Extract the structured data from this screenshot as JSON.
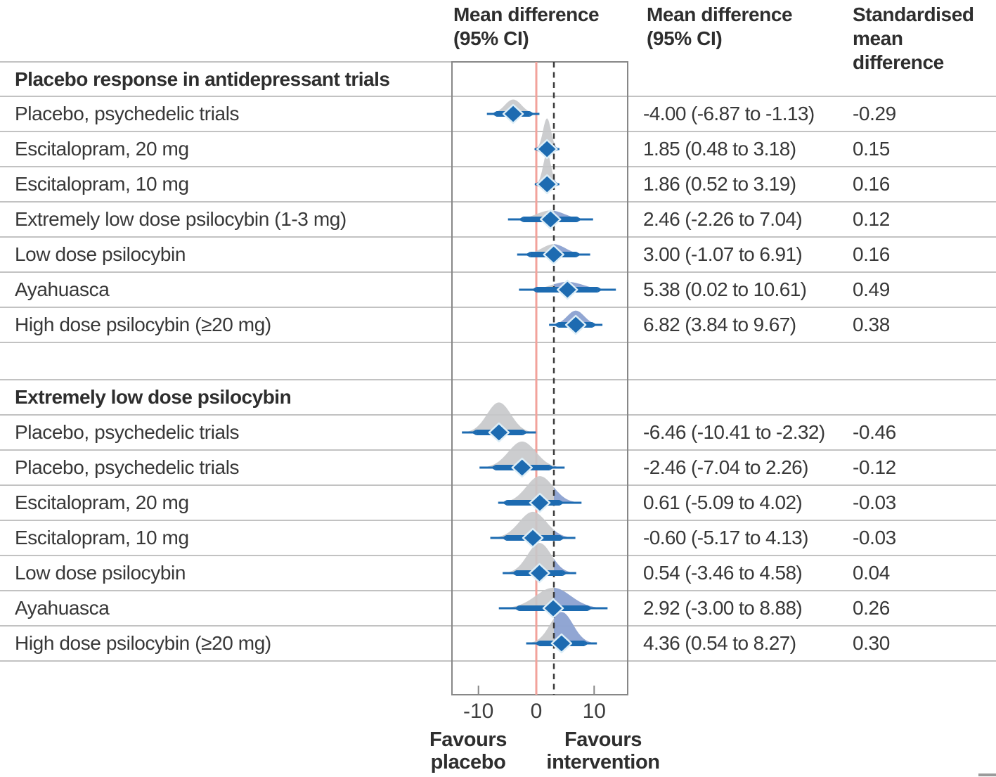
{
  "header": {
    "plot_col": [
      "Mean difference",
      "(95% CI)"
    ],
    "value_col": [
      "Mean difference",
      "(95% CI)"
    ],
    "smd_col": [
      "Standardised",
      "mean",
      "difference"
    ]
  },
  "axis": {
    "tick_labels": [
      "-10",
      "0",
      "10"
    ],
    "favours_left": [
      "Favours",
      "placebo"
    ],
    "favours_right": [
      "Favours",
      "intervention"
    ]
  },
  "colors": {
    "density_gray": "#c7c8ca",
    "density_blue": "#8da3d3",
    "marker_blue": "#1d6bb1",
    "marker_outline": "#ddeef7",
    "zero_line_red": "#f2a29b",
    "dashed_line": "#3b3b3b",
    "gridline": "#c2c2c2",
    "box_border": "#878787",
    "text": "#383838"
  },
  "chart_data": {
    "type": "forest-ridgeline",
    "title": "",
    "xlabel_left": "Favours placebo",
    "xlabel_right": "Favours intervention",
    "x_ticks": [
      -10,
      0,
      10
    ],
    "x_range": [
      -14.6,
      15.8
    ],
    "reference_lines": {
      "solid_zero": 0,
      "dashed": 3.04
    },
    "legend": "grey density = posterior left of dashed line; blue density = posterior right of dashed line; diamond = mean; thick bar = 95% CI; thin line = distribution extent",
    "rows": [
      {
        "type": "section",
        "label": "Placebo response in antidepressant trials"
      },
      {
        "type": "item",
        "section": 0,
        "label": "Placebo, psychedelic trials",
        "mean": -4.0,
        "ci_low": -6.87,
        "ci_high": -1.13,
        "ci_text": "-4.00 (-6.87 to -1.13)",
        "smd": "-0.29"
      },
      {
        "type": "item",
        "section": 0,
        "label": "Escitalopram, 20 mg",
        "mean": 1.85,
        "ci_low": 0.48,
        "ci_high": 3.18,
        "ci_text": "1.85 (0.48 to 3.18)",
        "smd": "0.15"
      },
      {
        "type": "item",
        "section": 0,
        "label": "Escitalopram, 10 mg",
        "mean": 1.86,
        "ci_low": 0.52,
        "ci_high": 3.19,
        "ci_text": "1.86 (0.52 to 3.19)",
        "smd": "0.16"
      },
      {
        "type": "item",
        "section": 0,
        "label": "Extremely low dose psilocybin (1-3 mg)",
        "mean": 2.46,
        "ci_low": -2.26,
        "ci_high": 7.04,
        "ci_text": "2.46 (-2.26 to 7.04)",
        "smd": "0.12"
      },
      {
        "type": "item",
        "section": 0,
        "label": "Low dose psilocybin",
        "mean": 3.0,
        "ci_low": -1.07,
        "ci_high": 6.91,
        "ci_text": "3.00 (-1.07 to 6.91)",
        "smd": "0.16"
      },
      {
        "type": "item",
        "section": 0,
        "label": "Ayahuasca",
        "mean": 5.38,
        "ci_low": 0.02,
        "ci_high": 10.61,
        "ci_text": "5.38 (0.02 to 10.61)",
        "smd": "0.49"
      },
      {
        "type": "item",
        "section": 0,
        "label": "High dose psilocybin (≥20 mg)",
        "mean": 6.82,
        "ci_low": 3.84,
        "ci_high": 9.67,
        "ci_text": "6.82 (3.84 to 9.67)",
        "smd": "0.38"
      },
      {
        "type": "gap"
      },
      {
        "type": "section",
        "label": "Extremely low dose psilocybin"
      },
      {
        "type": "item",
        "section": 1,
        "label": "Placebo, psychedelic trials",
        "mean": -6.46,
        "ci_low": -10.41,
        "ci_high": -2.32,
        "ci_text": "-6.46 (-10.41 to -2.32)",
        "smd": "-0.46"
      },
      {
        "type": "item",
        "section": 1,
        "label": "Placebo, psychedelic trials",
        "mean": -2.46,
        "ci_low": -7.04,
        "ci_high": 2.26,
        "ci_text": "-2.46 (-7.04 to 2.26)",
        "smd": "-0.12"
      },
      {
        "type": "item",
        "section": 1,
        "label": "Escitalopram, 20 mg",
        "mean": 0.61,
        "ci_low": -5.09,
        "ci_high": 4.02,
        "ci_text": "0.61 (-5.09 to 4.02)",
        "smd": "-0.03"
      },
      {
        "type": "item",
        "section": 1,
        "label": "Escitalopram, 10 mg",
        "mean": -0.6,
        "ci_low": -5.17,
        "ci_high": 4.13,
        "ci_text": "-0.60 (-5.17 to 4.13)",
        "smd": "-0.03"
      },
      {
        "type": "item",
        "section": 1,
        "label": "Low dose psilocybin",
        "mean": 0.54,
        "ci_low": -3.46,
        "ci_high": 4.58,
        "ci_text": "0.54 (-3.46 to 4.58)",
        "smd": "0.04"
      },
      {
        "type": "item",
        "section": 1,
        "label": "Ayahuasca",
        "mean": 2.92,
        "ci_low": -3.0,
        "ci_high": 8.88,
        "ci_text": "2.92 (-3.00 to 8.88)",
        "smd": "0.26"
      },
      {
        "type": "item",
        "section": 1,
        "label": "High dose psilocybin (≥20 mg)",
        "mean": 4.36,
        "ci_low": 0.54,
        "ci_high": 8.27,
        "ci_text": "4.36 (0.54 to 8.27)",
        "smd": "0.30"
      }
    ]
  }
}
